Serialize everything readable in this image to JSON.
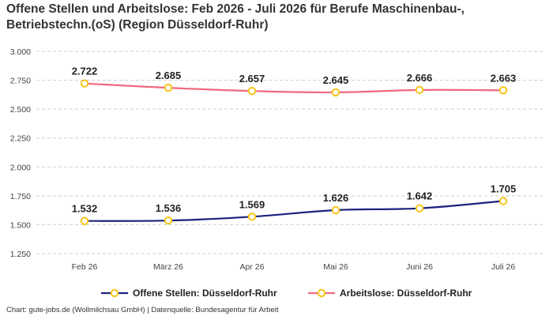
{
  "title": "Offene Stellen und Arbeitslose: Feb 2026 - Juli 2026 für Berufe Maschinenbau-, Betriebstechn.(oS) (Region Düsseldorf-Ruhr)",
  "footer": {
    "source_label": "Chart: gute-jobs.de (Wollmilchsau GmbH) | Datenquelle: Bundesagentur für Arbeit"
  },
  "chart_data": {
    "type": "line",
    "title": "Offene Stellen und Arbeitslose: Feb 2026 - Juli 2026 für Berufe Maschinenbau-, Betriebstechn.(oS) (Region Düsseldorf-Ruhr)",
    "categories": [
      "Feb 26",
      "März 26",
      "Apr 26",
      "Mai 26",
      "Juni 26",
      "Juli 26"
    ],
    "ylim": [
      1250,
      3000
    ],
    "y_ticks": [
      3000,
      2750,
      2500,
      2250,
      2000,
      1750,
      1500,
      1250
    ],
    "y_tick_labels": [
      "3.000",
      "2.750",
      "2.500",
      "2.250",
      "2.000",
      "1.750",
      "1.500",
      "1.250"
    ],
    "grid": true,
    "legend_position": "bottom",
    "series": [
      {
        "name": "Offene Stellen: Düsseldorf-Ruhr",
        "values": [
          1532,
          1536,
          1569,
          1626,
          1642,
          1705
        ],
        "labels": [
          "1.532",
          "1.536",
          "1.569",
          "1.626",
          "1.642",
          "1.705"
        ],
        "color": "#1a237e",
        "marker_color": "#f5c518"
      },
      {
        "name": "Arbeitslose: Düsseldorf-Ruhr",
        "values": [
          2722,
          2685,
          2657,
          2645,
          2666,
          2663
        ],
        "labels": [
          "2.722",
          "2.685",
          "2.657",
          "2.645",
          "2.666",
          "2.663"
        ],
        "color": "#f06a7e",
        "marker_color": "#f5c518"
      }
    ]
  }
}
